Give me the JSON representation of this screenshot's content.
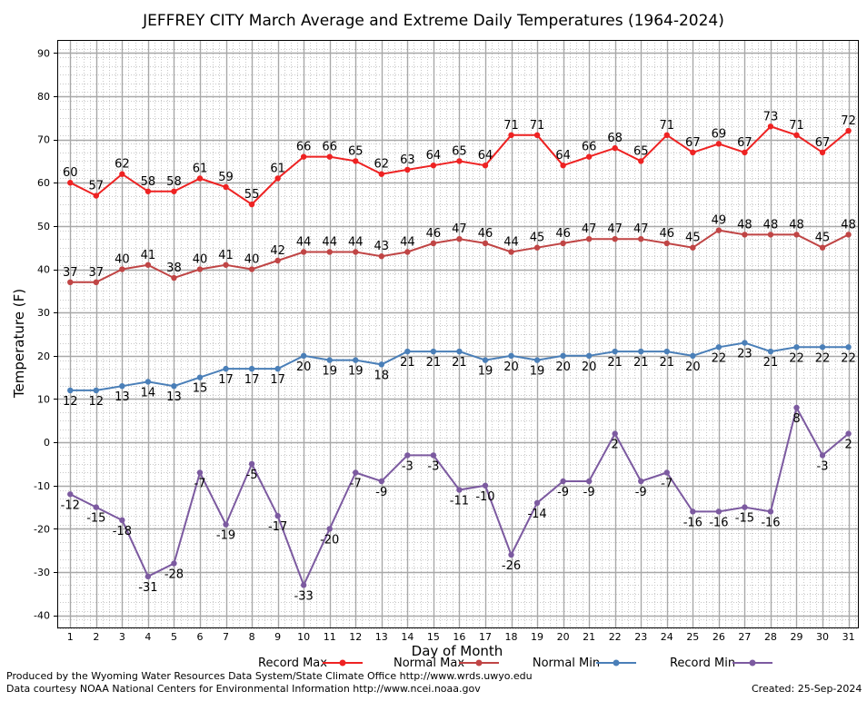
{
  "chart_data": {
    "type": "line",
    "title": "JEFFREY CITY March Average and Extreme Daily Temperatures (1964-2024)",
    "xlabel": "Day of Month",
    "ylabel": "Temperature (F)",
    "ylim": [
      -43,
      93
    ],
    "yticks": [
      -40,
      -30,
      -20,
      -10,
      0,
      10,
      20,
      30,
      40,
      50,
      60,
      70,
      80,
      90
    ],
    "x": [
      1,
      2,
      3,
      4,
      5,
      6,
      7,
      8,
      9,
      10,
      11,
      12,
      13,
      14,
      15,
      16,
      17,
      18,
      19,
      20,
      21,
      22,
      23,
      24,
      25,
      26,
      27,
      28,
      29,
      30,
      31
    ],
    "grid": true,
    "legend_position": "bottom",
    "series": [
      {
        "name": "Record Max",
        "color": "#ee2222",
        "label_pos": "above",
        "values": [
          60,
          57,
          62,
          58,
          58,
          61,
          59,
          55,
          61,
          66,
          66,
          65,
          62,
          63,
          64,
          65,
          64,
          71,
          71,
          64,
          66,
          68,
          65,
          71,
          67,
          69,
          67,
          73,
          71,
          67,
          72
        ]
      },
      {
        "name": "Normal Max",
        "color": "#c04545",
        "label_pos": "above",
        "values": [
          37,
          37,
          40,
          41,
          38,
          40,
          41,
          40,
          42,
          44,
          44,
          44,
          43,
          44,
          46,
          47,
          46,
          44,
          45,
          46,
          47,
          47,
          47,
          46,
          45,
          49,
          48,
          48,
          48,
          45,
          48
        ]
      },
      {
        "name": "Normal Min",
        "color": "#4a7fb8",
        "label_pos": "below",
        "values": [
          12,
          12,
          13,
          14,
          13,
          15,
          17,
          17,
          17,
          20,
          19,
          19,
          18,
          21,
          21,
          21,
          19,
          20,
          19,
          20,
          20,
          21,
          21,
          21,
          20,
          22,
          23,
          21,
          22,
          22,
          22
        ]
      },
      {
        "name": "Record Min",
        "color": "#7c5aa0",
        "label_pos": "below",
        "values": [
          -12,
          -15,
          -18,
          -31,
          -28,
          -7,
          -19,
          -5,
          -17,
          -33,
          -20,
          -7,
          -9,
          -3,
          -3,
          -11,
          -10,
          -26,
          -14,
          -9,
          -9,
          2,
          -9,
          -7,
          -16,
          -16,
          -15,
          -16,
          8,
          -3,
          2
        ]
      }
    ]
  },
  "footer": {
    "produced_by": "Produced by the Wyoming Water Resources Data System/State Climate Office http://www.wrds.uwyo.edu",
    "courtesy": "Data courtesy NOAA National Centers for Environmental Information http://www.ncei.noaa.gov",
    "created": "Created: 25-Sep-2024"
  }
}
